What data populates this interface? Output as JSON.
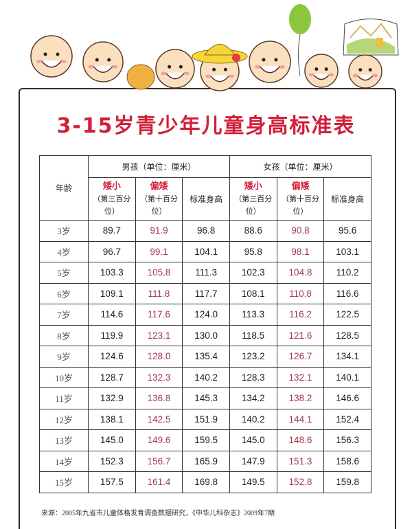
{
  "title": "3-15岁青少年儿童身高标准表",
  "header": {
    "age": "年龄",
    "boys": "男孩（单位：厘米）",
    "girls": "女孩（单位：厘米）",
    "short_label": "矮小",
    "short_sub": "（第三百分位）",
    "below_label": "偏矮",
    "below_sub": "（第十百分位）",
    "standard": "标准身高"
  },
  "rows": [
    {
      "age": "3岁",
      "b3": "89.7",
      "b10": "91.9",
      "bs": "96.8",
      "g3": "88.6",
      "g10": "90.8",
      "gs": "95.6"
    },
    {
      "age": "4岁",
      "b3": "96.7",
      "b10": "99.1",
      "bs": "104.1",
      "g3": "95.8",
      "g10": "98.1",
      "gs": "103.1"
    },
    {
      "age": "5岁",
      "b3": "103.3",
      "b10": "105.8",
      "bs": "111.3",
      "g3": "102.3",
      "g10": "104.8",
      "gs": "110.2"
    },
    {
      "age": "6岁",
      "b3": "109.1",
      "b10": "111.8",
      "bs": "117.7",
      "g3": "108.1",
      "g10": "110.8",
      "gs": "116.6"
    },
    {
      "age": "7岁",
      "b3": "114.6",
      "b10": "117.6",
      "bs": "124.0",
      "g3": "113.3",
      "g10": "116.2",
      "gs": "122.5"
    },
    {
      "age": "8岁",
      "b3": "119.9",
      "b10": "123.1",
      "bs": "130.0",
      "g3": "118.5",
      "g10": "121.6",
      "gs": "128.5"
    },
    {
      "age": "9岁",
      "b3": "124.6",
      "b10": "128.0",
      "bs": "135.4",
      "g3": "123.2",
      "g10": "126.7",
      "gs": "134.1"
    },
    {
      "age": "10岁",
      "b3": "128.7",
      "b10": "132.3",
      "bs": "140.2",
      "g3": "128.3",
      "g10": "132.1",
      "gs": "140.1"
    },
    {
      "age": "11岁",
      "b3": "132.9",
      "b10": "136.8",
      "bs": "145.3",
      "g3": "134.2",
      "g10": "138.2",
      "gs": "146.6"
    },
    {
      "age": "12岁",
      "b3": "138.1",
      "b10": "142.5",
      "bs": "151.9",
      "g3": "140.2",
      "g10": "144.1",
      "gs": "152.4"
    },
    {
      "age": "13岁",
      "b3": "145.0",
      "b10": "149.6",
      "bs": "159.5",
      "g3": "145.0",
      "g10": "148.6",
      "gs": "156.3"
    },
    {
      "age": "14岁",
      "b3": "152.3",
      "b10": "156.7",
      "bs": "165.9",
      "g3": "147.9",
      "g10": "151.3",
      "gs": "158.6"
    },
    {
      "age": "15岁",
      "b3": "157.5",
      "b10": "161.4",
      "bs": "169.8",
      "g3": "149.5",
      "g10": "152.8",
      "gs": "159.8"
    }
  ],
  "source": "来源：2005年九省市儿童体格发育调查数据研究，《中华儿科杂志》2009年7期",
  "colors": {
    "title": "#d2203a",
    "percentile10": "#a03a4a",
    "border": "#3a2a2a"
  }
}
